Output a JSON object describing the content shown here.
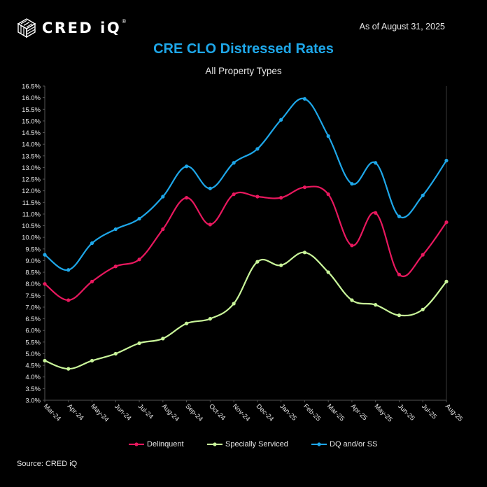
{
  "brand": {
    "name": "CRED iQ",
    "logo_text": "CRED iQ",
    "registered_mark": "®",
    "icon": "cube-stripes-logo-icon"
  },
  "as_of": "As of August 31, 2025",
  "source": "Source: CRED iQ",
  "colors": {
    "background": "#000000",
    "title": "#1ea7e9",
    "delinquent": "#e8185e",
    "specially_serviced": "#c9f59a",
    "dq_and_or_ss": "#1ea7e9",
    "grid": "#3a3a3a",
    "text": "#e6e6e6"
  },
  "chart_data": {
    "type": "line",
    "title": "CRE CLO Distressed Rates",
    "subtitle": "All Property Types",
    "xlabel": "",
    "ylabel": "",
    "categories": [
      "Mar-24",
      "Apr-24",
      "May-24",
      "Jun-24",
      "Jul-24",
      "Aug-24",
      "Sep-24",
      "Oct-24",
      "Nov-24",
      "Dec-24",
      "Jan-25",
      "Feb-25",
      "Mar-25",
      "Apr-25",
      "May-25",
      "Jun-25",
      "Jul-25",
      "Aug-25"
    ],
    "ylim": [
      3.0,
      16.5
    ],
    "ytick_step": 0.5,
    "ytick_format": "percent_1dp",
    "grid": false,
    "smooth": true,
    "markers": true,
    "legend_position": "bottom",
    "series": [
      {
        "name": "Delinquent",
        "color": "#e8185e",
        "values": [
          8.0,
          7.3,
          8.1,
          8.75,
          9.05,
          10.35,
          11.7,
          10.55,
          11.85,
          11.75,
          11.7,
          12.15,
          11.85,
          9.65,
          11.05,
          8.4,
          9.25,
          10.65
        ]
      },
      {
        "name": "Specially Serviced",
        "color": "#c9f59a",
        "values": [
          4.7,
          4.35,
          4.7,
          5.0,
          5.45,
          5.65,
          6.3,
          6.5,
          7.15,
          8.95,
          8.8,
          9.35,
          8.5,
          7.3,
          7.1,
          6.65,
          6.9,
          8.1
        ]
      },
      {
        "name": "DQ and/or SS",
        "color": "#1ea7e9",
        "values": [
          9.25,
          8.6,
          9.75,
          10.35,
          10.8,
          11.75,
          13.05,
          12.1,
          13.2,
          13.8,
          15.05,
          15.95,
          14.35,
          12.3,
          13.2,
          10.9,
          11.8,
          13.3
        ]
      }
    ]
  }
}
